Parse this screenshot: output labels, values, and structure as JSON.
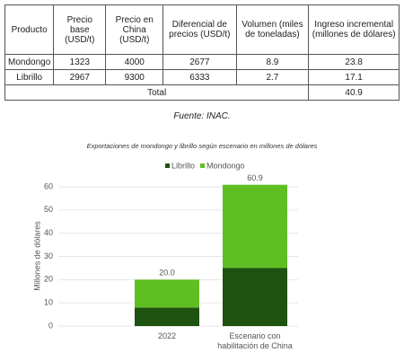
{
  "table": {
    "headers": [
      "Producto",
      "Precio base (USD/t)",
      "Precio en China (USD/t)",
      "Diferencial de precios (USD/t)",
      "Volumen (miles de toneladas)",
      "Ingreso incremental (millones de dólares)"
    ],
    "rows": [
      [
        "Mondongo",
        1323,
        4000,
        2677,
        8.9,
        23.8
      ],
      [
        "Librillo",
        2967,
        9300,
        6333,
        2.7,
        17.1
      ]
    ],
    "total": {
      "label": "Total",
      "value": 40.9
    }
  },
  "source": "Fuente: INAC.",
  "chart_data": {
    "type": "stacked_bar",
    "title": "Exportaciones de mondongo y librillo según escenario en millones de dólares",
    "y_label": "Millones de dólares",
    "categories": [
      "2022",
      "Escenario con habilitación de China"
    ],
    "series": [
      {
        "name": "Librillo",
        "color": "#1e5210",
        "values": [
          8.0,
          25.1
        ]
      },
      {
        "name": "Mondongo",
        "color": "#5fbf22",
        "values": [
          12.0,
          35.8
        ]
      }
    ],
    "totals": [
      20.0,
      60.9
    ],
    "total_labels": [
      "20.0",
      "60.9"
    ],
    "ylim": [
      0,
      62
    ],
    "yticks": [
      0,
      10,
      20,
      30,
      40,
      50,
      60
    ],
    "grid": true,
    "legend": "top"
  }
}
